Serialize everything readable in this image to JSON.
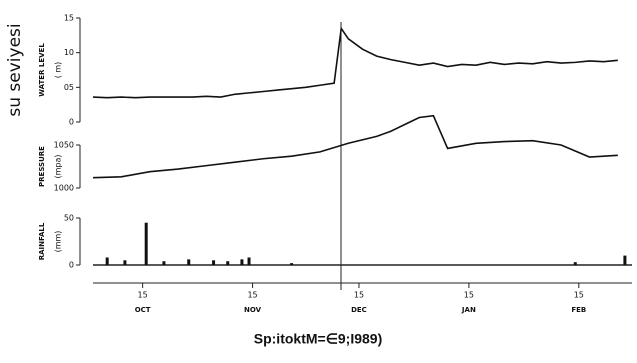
{
  "side_label": "su seviyesi",
  "caption": "Sp:itoktM=∈9;I989)",
  "chart_data": [
    {
      "type": "line",
      "y_label": "WATER LEVEL",
      "y_unit": "( m)",
      "color": "#111111",
      "xlim": [
        0,
        152
      ],
      "ylim": [
        0,
        15
      ],
      "yticks": [
        0,
        {
          "value": 5,
          "label": "05"
        },
        10,
        15
      ],
      "x": [
        0,
        4,
        8,
        12,
        16,
        20,
        24,
        28,
        32,
        36,
        40,
        44,
        48,
        52,
        56,
        60,
        64,
        68,
        70,
        72,
        76,
        80,
        84,
        88,
        92,
        96,
        100,
        104,
        108,
        112,
        116,
        120,
        124,
        128,
        132,
        136,
        140,
        144,
        148
      ],
      "values": [
        3.6,
        3.5,
        3.6,
        3.5,
        3.6,
        3.6,
        3.6,
        3.6,
        3.7,
        3.6,
        4.0,
        4.2,
        4.4,
        4.6,
        4.8,
        5.0,
        5.3,
        5.6,
        13.5,
        12.0,
        10.5,
        9.5,
        9.0,
        8.6,
        8.2,
        8.5,
        8.0,
        8.3,
        8.2,
        8.6,
        8.3,
        8.5,
        8.4,
        8.7,
        8.5,
        8.6,
        8.8,
        8.7,
        8.9
      ]
    },
    {
      "type": "line",
      "y_label": "PRESSURE",
      "y_unit": "(mpa)",
      "color": "#111111",
      "xlim": [
        0,
        152
      ],
      "ylim": [
        990,
        1090
      ],
      "yticks": [
        1000,
        1050
      ],
      "x": [
        0,
        8,
        16,
        24,
        32,
        40,
        48,
        56,
        64,
        72,
        80,
        84,
        88,
        92,
        96,
        100,
        108,
        116,
        124,
        132,
        140,
        148
      ],
      "values": [
        1012,
        1013,
        1019,
        1022,
        1026,
        1030,
        1034,
        1037,
        1042,
        1052,
        1060,
        1066,
        1074,
        1082,
        1084,
        1046,
        1052,
        1054,
        1055,
        1050,
        1036,
        1038
      ]
    },
    {
      "type": "bar",
      "y_label": "RAINFALL",
      "y_unit": "(mm)",
      "color": "#111111",
      "xlim": [
        0,
        152
      ],
      "ylim": [
        0,
        50
      ],
      "yticks": [
        0,
        50
      ],
      "x": [
        4,
        9,
        15,
        20,
        27,
        34,
        38,
        42,
        44,
        56,
        136,
        150
      ],
      "values": [
        8,
        5,
        45,
        4,
        6,
        5,
        4,
        6,
        8,
        2,
        3,
        10
      ],
      "xticks": [
        {
          "value": 14,
          "label": "15"
        },
        {
          "value": 45,
          "label": "15"
        },
        {
          "value": 75,
          "label": "15"
        },
        {
          "value": 106,
          "label": "15"
        },
        {
          "value": 137,
          "label": "15"
        }
      ],
      "month_labels": [
        "OCT",
        "NOV",
        "DEC",
        "JAN",
        "FEB"
      ]
    }
  ]
}
